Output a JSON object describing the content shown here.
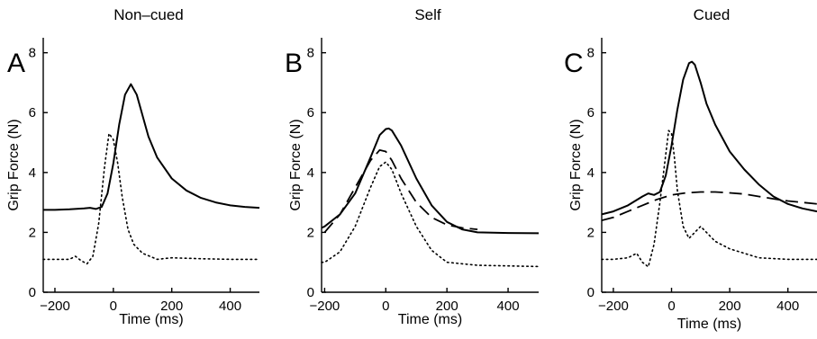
{
  "chart_data": [
    {
      "type": "line",
      "panel_letter": "A",
      "title": "Non–cued",
      "xlabel": "Time (ms)",
      "ylabel": "Grip Force (N)",
      "xlim": [
        -240,
        500
      ],
      "ylim": [
        0,
        8.5
      ],
      "xticks": [
        -200,
        0,
        200,
        400
      ],
      "yticks": [
        0,
        2,
        4,
        6,
        8
      ],
      "grid": false,
      "series": [
        {
          "style": "solid",
          "x": [
            -240,
            -200,
            -150,
            -100,
            -80,
            -60,
            -40,
            -20,
            0,
            20,
            40,
            60,
            80,
            100,
            120,
            150,
            200,
            250,
            300,
            350,
            400,
            450,
            500
          ],
          "y": [
            2.75,
            2.75,
            2.77,
            2.8,
            2.82,
            2.78,
            2.85,
            3.3,
            4.3,
            5.6,
            6.6,
            6.95,
            6.6,
            5.9,
            5.2,
            4.5,
            3.8,
            3.4,
            3.15,
            3.0,
            2.9,
            2.85,
            2.82
          ]
        },
        {
          "style": "dotted",
          "x": [
            -240,
            -200,
            -150,
            -130,
            -110,
            -90,
            -70,
            -50,
            -30,
            -15,
            0,
            15,
            30,
            50,
            70,
            100,
            150,
            200,
            300,
            400,
            500
          ],
          "y": [
            1.1,
            1.1,
            1.1,
            1.2,
            1.05,
            0.95,
            1.2,
            2.3,
            4.2,
            5.3,
            5.1,
            4.3,
            3.2,
            2.1,
            1.6,
            1.3,
            1.1,
            1.15,
            1.12,
            1.1,
            1.1
          ]
        }
      ]
    },
    {
      "type": "line",
      "panel_letter": "B",
      "title": "Self",
      "xlabel": "Time (ms)",
      "ylabel": "Grip Force (N)",
      "xlim": [
        -210,
        500
      ],
      "ylim": [
        0,
        8.5
      ],
      "xticks": [
        -200,
        0,
        200,
        400
      ],
      "yticks": [
        0,
        2,
        4,
        6,
        8
      ],
      "grid": false,
      "series": [
        {
          "style": "solid",
          "x": [
            -210,
            -200,
            -150,
            -100,
            -50,
            -20,
            0,
            10,
            20,
            50,
            100,
            150,
            200,
            250,
            300,
            400,
            500
          ],
          "y": [
            2.15,
            2.2,
            2.6,
            3.3,
            4.5,
            5.25,
            5.45,
            5.47,
            5.4,
            4.9,
            3.8,
            2.9,
            2.35,
            2.1,
            2.0,
            1.98,
            1.97
          ]
        },
        {
          "style": "dashed",
          "x": [
            -200,
            -150,
            -100,
            -50,
            -20,
            0,
            20,
            50,
            100,
            150,
            200,
            250,
            300
          ],
          "y": [
            2.0,
            2.6,
            3.5,
            4.4,
            4.75,
            4.7,
            4.4,
            3.8,
            3.0,
            2.5,
            2.25,
            2.15,
            2.1
          ]
        },
        {
          "style": "dotted",
          "x": [
            -210,
            -200,
            -150,
            -100,
            -50,
            -20,
            0,
            20,
            50,
            100,
            150,
            200,
            300,
            400,
            500
          ],
          "y": [
            1.0,
            1.0,
            1.35,
            2.2,
            3.5,
            4.2,
            4.35,
            4.1,
            3.3,
            2.2,
            1.4,
            1.0,
            0.9,
            0.88,
            0.86
          ]
        }
      ]
    },
    {
      "type": "line",
      "panel_letter": "C",
      "title": "Cued",
      "xlabel": "Time (ms)",
      "ylabel": "Grip Force (N)",
      "xlim": [
        -240,
        500
      ],
      "ylim": [
        0,
        8.5
      ],
      "xticks": [
        -200,
        0,
        200,
        400
      ],
      "yticks": [
        0,
        2,
        4,
        6,
        8
      ],
      "grid": false,
      "series": [
        {
          "style": "solid",
          "x": [
            -240,
            -200,
            -150,
            -100,
            -80,
            -60,
            -40,
            -20,
            0,
            20,
            40,
            60,
            70,
            80,
            100,
            120,
            150,
            200,
            250,
            300,
            350,
            400,
            450,
            500
          ],
          "y": [
            2.6,
            2.7,
            2.9,
            3.2,
            3.3,
            3.25,
            3.35,
            3.9,
            4.9,
            6.1,
            7.1,
            7.65,
            7.7,
            7.6,
            7.0,
            6.3,
            5.6,
            4.7,
            4.1,
            3.6,
            3.2,
            2.95,
            2.8,
            2.7
          ]
        },
        {
          "style": "dashed",
          "x": [
            -240,
            -200,
            -150,
            -100,
            -50,
            0,
            50,
            100,
            150,
            200,
            250,
            300,
            350,
            400,
            450,
            500
          ],
          "y": [
            2.4,
            2.5,
            2.7,
            2.9,
            3.1,
            3.25,
            3.32,
            3.35,
            3.35,
            3.32,
            3.28,
            3.2,
            3.12,
            3.05,
            3.0,
            2.95
          ]
        },
        {
          "style": "dotted",
          "x": [
            -240,
            -200,
            -150,
            -120,
            -100,
            -80,
            -60,
            -40,
            -20,
            -10,
            0,
            10,
            20,
            40,
            60,
            80,
            100,
            120,
            150,
            200,
            250,
            300,
            400,
            500
          ],
          "y": [
            1.1,
            1.1,
            1.15,
            1.3,
            1.0,
            0.85,
            1.6,
            3.0,
            4.6,
            5.4,
            5.3,
            4.5,
            3.4,
            2.2,
            1.8,
            2.0,
            2.2,
            2.0,
            1.7,
            1.45,
            1.3,
            1.15,
            1.1,
            1.1
          ]
        }
      ]
    }
  ]
}
